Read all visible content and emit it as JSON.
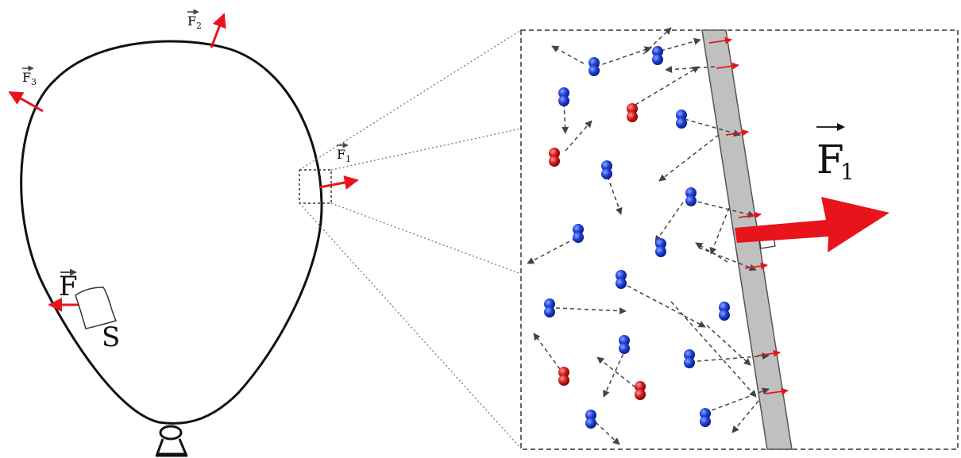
{
  "labels": {
    "f_top_left": {
      "letter": "F",
      "sub": "3"
    },
    "f_top": {
      "letter": "F",
      "sub": "2"
    },
    "f_right": {
      "letter": "F",
      "sub": "1"
    },
    "f_patch": {
      "letter": "F"
    },
    "patch": {
      "letter": "S"
    },
    "f_big": {
      "letter": "F",
      "sub": "1"
    }
  },
  "colors": {
    "outline": "#111111",
    "force_arrow": "#e8141c",
    "molecule_blue": "#1d3fd8",
    "molecule_red": "#d81a1a",
    "wall_fill": "#c0c0c0",
    "dash": "#444444"
  },
  "molecules": [
    {
      "color": "blue"
    },
    {
      "color": "blue"
    },
    {
      "color": "blue"
    },
    {
      "color": "red"
    },
    {
      "color": "blue"
    },
    {
      "color": "red"
    },
    {
      "color": "blue"
    },
    {
      "color": "blue"
    },
    {
      "color": "blue"
    },
    {
      "color": "blue"
    },
    {
      "color": "blue"
    },
    {
      "color": "blue"
    },
    {
      "color": "blue"
    },
    {
      "color": "blue"
    },
    {
      "color": "red"
    },
    {
      "color": "red"
    },
    {
      "color": "blue"
    },
    {
      "color": "blue"
    },
    {
      "color": "blue"
    }
  ]
}
